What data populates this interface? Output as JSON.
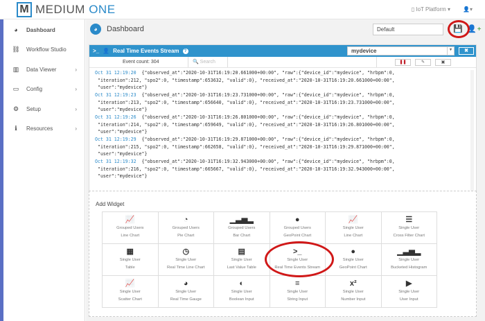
{
  "brand": {
    "logo_letter": "M",
    "name_a": "MEDIUM",
    "name_b": "ONE"
  },
  "topbar": {
    "project": "IoT Platform",
    "user_caret": "▾"
  },
  "sidebar": {
    "items": [
      {
        "label": "Dashboard",
        "icon": "dashboard-icon",
        "glyph": "◕"
      },
      {
        "label": "Workflow Studio",
        "icon": "sitemap-icon",
        "glyph": "⛓"
      },
      {
        "label": "Data Viewer",
        "icon": "table-icon",
        "glyph": "▥",
        "chevron": "›"
      },
      {
        "label": "Config",
        "icon": "monitor-icon",
        "glyph": "▭",
        "chevron": "›"
      },
      {
        "label": "Setup",
        "icon": "gears-icon",
        "glyph": "⚙",
        "chevron": "›"
      },
      {
        "label": "Resources",
        "icon": "info-icon",
        "glyph": "ℹ",
        "chevron": "›"
      }
    ]
  },
  "dashboard": {
    "title": "Dashboard",
    "selected": "Default"
  },
  "widget": {
    "title": "Real Time Events Stream",
    "device": "mydevice",
    "event_count": "Event count: 304",
    "search_placeholder": "Search",
    "entries": [
      {
        "ts": "Oct 31 12:19:20",
        "l1": "{\"observed_at\":\"2020-10-31T16:19:20.661000+00:00\", \"raw\":{\"device_id\":\"mydevice\", \"hrbpm\":0,",
        "l2": " \"iteration\":212, \"spo2\":0, \"timestamp\":653632, \"valid\":0}, \"received_at\":\"2020-10-31T16:19:20.661000+00:00\",",
        "l3": " \"user\":\"mydevice\"}"
      },
      {
        "ts": "Oct 31 12:19:23",
        "l1": "{\"observed_at\":\"2020-10-31T16:19:23.731000+00:00\", \"raw\":{\"device_id\":\"mydevice\", \"hrbpm\":0,",
        "l2": " \"iteration\":213, \"spo2\":0, \"timestamp\":656640, \"valid\":0}, \"received_at\":\"2020-10-31T16:19:23.731000+00:00\",",
        "l3": " \"user\":\"mydevice\"}"
      },
      {
        "ts": "Oct 31 12:19:26",
        "l1": "{\"observed_at\":\"2020-10-31T16:19:26.801000+00:00\", \"raw\":{\"device_id\":\"mydevice\", \"hrbpm\":0,",
        "l2": " \"iteration\":214, \"spo2\":0, \"timestamp\":659649, \"valid\":0}, \"received_at\":\"2020-10-31T16:19:26.801000+00:00\",",
        "l3": " \"user\":\"mydevice\"}"
      },
      {
        "ts": "Oct 31 12:19:29",
        "l1": "{\"observed_at\":\"2020-10-31T16:19:29.871000+00:00\", \"raw\":{\"device_id\":\"mydevice\", \"hrbpm\":0,",
        "l2": " \"iteration\":215, \"spo2\":0, \"timestamp\":662658, \"valid\":0}, \"received_at\":\"2020-10-31T16:19:29.871000+00:00\",",
        "l3": " \"user\":\"mydevice\"}"
      },
      {
        "ts": "Oct 31 12:19:32",
        "l1": "{\"observed_at\":\"2020-10-31T16:19:32.943000+00:00\", \"raw\":{\"device_id\":\"mydevice\", \"hrbpm\":0,",
        "l2": " \"iteration\":216, \"spo2\":0, \"timestamp\":665667, \"valid\":0}, \"received_at\":\"2020-10-31T16:19:32.943000+00:00\",",
        "l3": " \"user\":\"mydevice\"}"
      }
    ]
  },
  "add_widget": {
    "title": "Add Widget",
    "items": [
      {
        "a": "Grouped Users",
        "b": "Line Chart",
        "icon": "line-chart-icon",
        "g": "📈"
      },
      {
        "a": "Grouped Users",
        "b": "Pie Chart",
        "icon": "pie-chart-icon",
        "g": "◔"
      },
      {
        "a": "Grouped Users",
        "b": "Bar Chart",
        "icon": "bar-chart-icon",
        "g": "▁▃▅▂"
      },
      {
        "a": "Grouped Users",
        "b": "GeoPoint Chart",
        "icon": "globe-icon",
        "g": "●"
      },
      {
        "a": "Single User",
        "b": "Line Chart",
        "icon": "line-chart-icon",
        "g": "📈"
      },
      {
        "a": "Single User",
        "b": "Cross Filter Chart",
        "icon": "tasks-icon",
        "g": "☰"
      },
      {
        "a": "Single User",
        "b": "Table",
        "icon": "table-icon",
        "g": "▦"
      },
      {
        "a": "Single User",
        "b": "Real Time Line Chart",
        "icon": "clock-icon",
        "g": "◷"
      },
      {
        "a": "Single User",
        "b": "Last Value Table",
        "icon": "list-alt-icon",
        "g": "▤"
      },
      {
        "a": "Single User",
        "b": "Real Time Events Stream",
        "icon": "terminal-icon",
        "g": ">_"
      },
      {
        "a": "Single User",
        "b": "GeoPoint Chart",
        "icon": "globe-icon",
        "g": "●"
      },
      {
        "a": "Single User",
        "b": "Bucketed Histogram",
        "icon": "bar-chart-icon",
        "g": "▁▃▅▂"
      },
      {
        "a": "Single User",
        "b": "Scatter Chart",
        "icon": "line-chart-icon",
        "g": "📈"
      },
      {
        "a": "Single User",
        "b": "Real Time Gauge",
        "icon": "gauge-icon",
        "g": "◕"
      },
      {
        "a": "Single User",
        "b": "Boolean Input",
        "icon": "toggle-icon",
        "g": "◐"
      },
      {
        "a": "Single User",
        "b": "String Input",
        "icon": "align-justify-icon",
        "g": "≡"
      },
      {
        "a": "Single User",
        "b": "Number Input",
        "icon": "superscript-icon",
        "g": "x²"
      },
      {
        "a": "Single User",
        "b": "User Input",
        "icon": "play-square-icon",
        "g": "▶"
      }
    ]
  },
  "colors": {
    "accent": "#2f93cc",
    "annotation": "#d01818"
  }
}
